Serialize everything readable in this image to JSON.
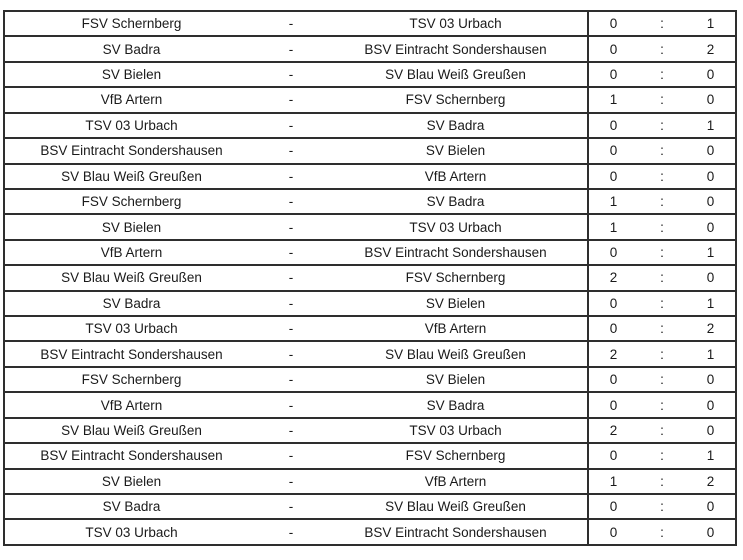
{
  "page": {
    "background_color": "#ffffff",
    "border_color": "#2e2e2e",
    "text_color": "#1a1a1a"
  },
  "results_table": {
    "separator": "-",
    "score_separator": ":",
    "matches": [
      {
        "home": "FSV Schernberg",
        "away": "TSV 03 Urbach",
        "home_goals": "0",
        "away_goals": "1"
      },
      {
        "home": "SV Badra",
        "away": "BSV Eintracht Sondershausen",
        "home_goals": "0",
        "away_goals": "2"
      },
      {
        "home": "SV Bielen",
        "away": "SV Blau Weiß Greußen",
        "home_goals": "0",
        "away_goals": "0"
      },
      {
        "home": "VfB Artern",
        "away": "FSV Schernberg",
        "home_goals": "1",
        "away_goals": "0"
      },
      {
        "home": "TSV 03 Urbach",
        "away": "SV Badra",
        "home_goals": "0",
        "away_goals": "1"
      },
      {
        "home": "BSV Eintracht Sondershausen",
        "away": "SV Bielen",
        "home_goals": "0",
        "away_goals": "0"
      },
      {
        "home": "SV Blau Weiß Greußen",
        "away": "VfB Artern",
        "home_goals": "0",
        "away_goals": "0"
      },
      {
        "home": "FSV Schernberg",
        "away": "SV Badra",
        "home_goals": "1",
        "away_goals": "0"
      },
      {
        "home": "SV Bielen",
        "away": "TSV 03 Urbach",
        "home_goals": "1",
        "away_goals": "0"
      },
      {
        "home": "VfB Artern",
        "away": "BSV Eintracht Sondershausen",
        "home_goals": "0",
        "away_goals": "1"
      },
      {
        "home": "SV Blau Weiß Greußen",
        "away": "FSV Schernberg",
        "home_goals": "2",
        "away_goals": "0"
      },
      {
        "home": "SV Badra",
        "away": "SV Bielen",
        "home_goals": "0",
        "away_goals": "1"
      },
      {
        "home": "TSV 03 Urbach",
        "away": "VfB Artern",
        "home_goals": "0",
        "away_goals": "2"
      },
      {
        "home": "BSV Eintracht Sondershausen",
        "away": "SV Blau Weiß Greußen",
        "home_goals": "2",
        "away_goals": "1"
      },
      {
        "home": "FSV Schernberg",
        "away": "SV Bielen",
        "home_goals": "0",
        "away_goals": "0"
      },
      {
        "home": "VfB Artern",
        "away": "SV Badra",
        "home_goals": "0",
        "away_goals": "0"
      },
      {
        "home": "SV Blau Weiß Greußen",
        "away": "TSV 03 Urbach",
        "home_goals": "2",
        "away_goals": "0"
      },
      {
        "home": "BSV Eintracht Sondershausen",
        "away": "FSV Schernberg",
        "home_goals": "0",
        "away_goals": "1"
      },
      {
        "home": "SV Bielen",
        "away": "VfB Artern",
        "home_goals": "1",
        "away_goals": "2"
      },
      {
        "home": "SV Badra",
        "away": "SV Blau Weiß Greußen",
        "home_goals": "0",
        "away_goals": "0"
      },
      {
        "home": "TSV 03 Urbach",
        "away": "BSV Eintracht Sondershausen",
        "home_goals": "0",
        "away_goals": "0"
      }
    ]
  }
}
